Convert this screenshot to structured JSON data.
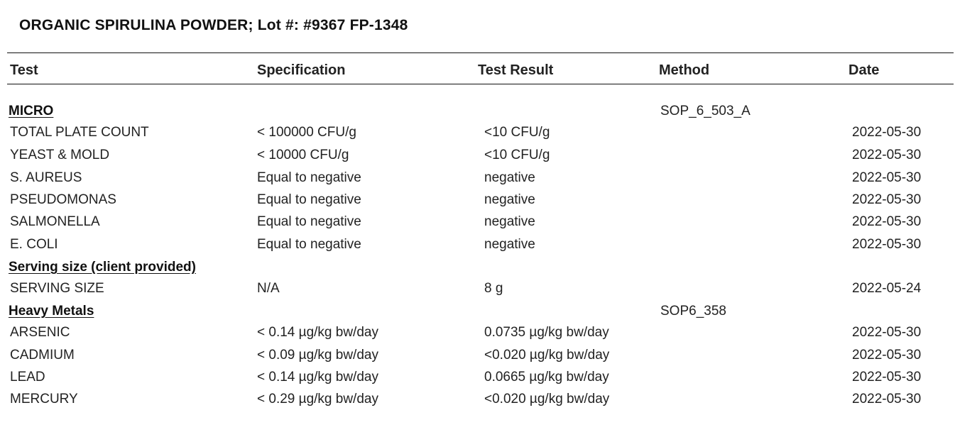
{
  "title": "ORGANIC SPIRULINA POWDER; Lot #: #9367 FP-1348",
  "headers": {
    "test": "Test",
    "specification": "Specification",
    "result": "Test Result",
    "method": "Method",
    "date": "Date"
  },
  "sections": [
    {
      "name": "MICRO",
      "method": "SOP_6_503_A",
      "rows": [
        {
          "test": "TOTAL PLATE COUNT",
          "spec": "< 100000 CFU/g",
          "result": "<10 CFU/g",
          "date": "2022-05-30"
        },
        {
          "test": "YEAST & MOLD",
          "spec": "< 10000 CFU/g",
          "result": "<10 CFU/g",
          "date": "2022-05-30"
        },
        {
          "test": "S. AUREUS",
          "spec": "Equal to negative",
          "result": "negative",
          "date": "2022-05-30"
        },
        {
          "test": "PSEUDOMONAS",
          "spec": "Equal to negative",
          "result": "negative",
          "date": "2022-05-30"
        },
        {
          "test": "SALMONELLA",
          "spec": "Equal to negative",
          "result": "negative",
          "date": "2022-05-30"
        },
        {
          "test": "E. COLI",
          "spec": "Equal to negative",
          "result": "negative",
          "date": "2022-05-30"
        }
      ]
    },
    {
      "name": "Serving size (client provided)",
      "method": "",
      "rows": [
        {
          "test": "SERVING SIZE",
          "spec": "N/A",
          "result": "8 g",
          "date": "2022-05-24"
        }
      ]
    },
    {
      "name": "Heavy Metals",
      "method": "SOP6_358",
      "rows": [
        {
          "test": "ARSENIC",
          "spec": "< 0.14 µg/kg bw/day",
          "result": "0.0735 µg/kg bw/day",
          "date": "2022-05-30"
        },
        {
          "test": "CADMIUM",
          "spec": "< 0.09 µg/kg bw/day",
          "result": "<0.020 µg/kg bw/day",
          "date": "2022-05-30"
        },
        {
          "test": "LEAD",
          "spec": "< 0.14 µg/kg bw/day",
          "result": "0.0665 µg/kg bw/day",
          "date": "2022-05-30"
        },
        {
          "test": "MERCURY",
          "spec": "< 0.29 µg/kg bw/day",
          "result": "<0.020 µg/kg bw/day",
          "date": "2022-05-30"
        }
      ]
    }
  ]
}
